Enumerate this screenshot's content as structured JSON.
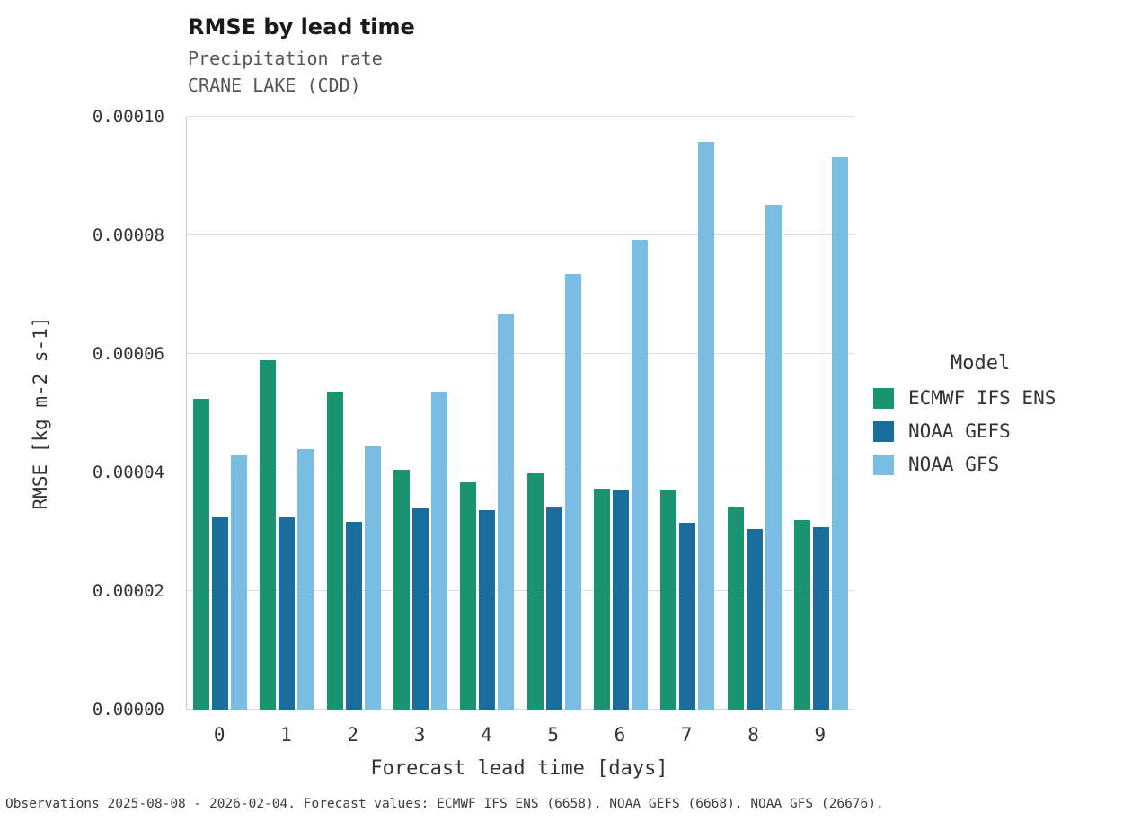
{
  "header": {
    "title": "RMSE by lead time",
    "subtitle": "Precipitation rate",
    "station": "CRANE LAKE (CDD)"
  },
  "legend": {
    "title": "Model"
  },
  "footer": {
    "text": "Observations 2025-08-08 - 2026-02-04. Forecast values: ECMWF IFS ENS (6658), NOAA GEFS (6668), NOAA GFS (26676)."
  },
  "chart_data": {
    "type": "bar",
    "title": "RMSE by lead time",
    "xlabel": "Forecast lead time [days]",
    "ylabel": "RMSE [kg m-2 s-1]",
    "ylim": [
      0,
      0.0001
    ],
    "grid": true,
    "legend_position": "right",
    "categories": [
      "0",
      "1",
      "2",
      "3",
      "4",
      "5",
      "6",
      "7",
      "8",
      "9"
    ],
    "yticks": [
      0,
      2e-05,
      4e-05,
      6e-05,
      8e-05,
      0.0001
    ],
    "ytick_labels": [
      "0.00000",
      "0.00002",
      "0.00004",
      "0.00006",
      "0.00008",
      "0.00010"
    ],
    "series": [
      {
        "name": "ECMWF IFS ENS",
        "color": "#1a9371",
        "values": [
          5.25e-05,
          5.9e-05,
          5.37e-05,
          4.05e-05,
          3.83e-05,
          3.98e-05,
          3.72e-05,
          3.71e-05,
          3.42e-05,
          3.2e-05
        ]
      },
      {
        "name": "NOAA GEFS",
        "color": "#1a6e9e",
        "values": [
          3.25e-05,
          3.25e-05,
          3.16e-05,
          3.4e-05,
          3.37e-05,
          3.43e-05,
          3.7e-05,
          3.15e-05,
          3.05e-05,
          3.08e-05
        ]
      },
      {
        "name": "NOAA GFS",
        "color": "#7abde2",
        "values": [
          4.3e-05,
          4.39e-05,
          4.45e-05,
          5.37e-05,
          6.67e-05,
          7.35e-05,
          7.92e-05,
          9.57e-05,
          8.52e-05,
          9.32e-05
        ]
      }
    ]
  }
}
